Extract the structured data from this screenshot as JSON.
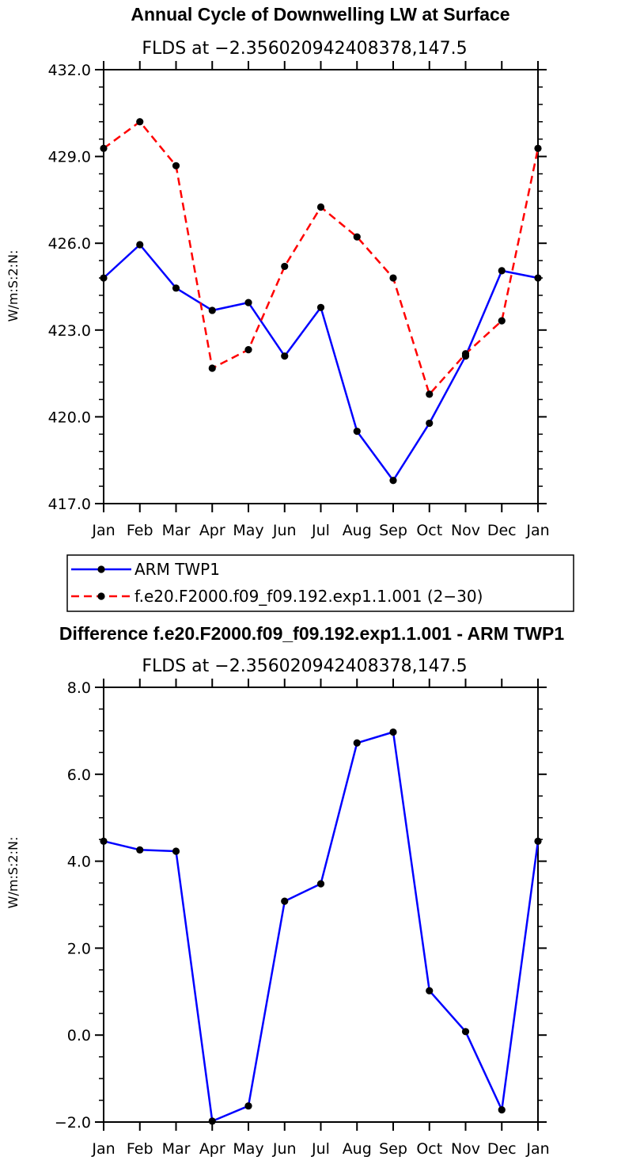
{
  "chart_data": [
    {
      "type": "line",
      "title": "Annual Cycle of Downwelling LW at Surface",
      "subtitle": "FLDS at −2.356020942408378,147.5",
      "xlabel": "",
      "ylabel": "W/m:S:2:N:",
      "categories": [
        "Jan",
        "Feb",
        "Mar",
        "Apr",
        "May",
        "Jun",
        "Jul",
        "Aug",
        "Sep",
        "Oct",
        "Nov",
        "Dec",
        "Jan"
      ],
      "ylim": [
        417.0,
        432.0
      ],
      "yticks": [
        "417.0",
        "420.0",
        "423.0",
        "426.0",
        "429.0",
        "432.0"
      ],
      "series": [
        {
          "name": "ARM TWP1",
          "color": "#0000ff",
          "dash": "solid",
          "values": [
            424.8,
            425.95,
            424.45,
            423.68,
            423.95,
            422.1,
            423.78,
            419.5,
            417.8,
            419.78,
            422.1,
            425.05,
            424.8
          ]
        },
        {
          "name": "f.e20.F2000.f09_f09.192.exp1.1.001 (2−30)",
          "color": "#ff0000",
          "dash": "dashed",
          "values": [
            429.28,
            430.2,
            428.68,
            421.68,
            422.32,
            425.2,
            427.25,
            426.22,
            424.8,
            420.78,
            422.18,
            423.32,
            429.28
          ]
        }
      ],
      "legend": [
        "ARM TWP1",
        "f.e20.F2000.f09_f09.192.exp1.1.001 (2−30)"
      ]
    },
    {
      "type": "line",
      "title": "Difference f.e20.F2000.f09_f09.192.exp1.1.001 - ARM TWP1",
      "subtitle": "FLDS at −2.356020942408378,147.5",
      "xlabel": "",
      "ylabel": "W/m:S:2:N:",
      "categories": [
        "Jan",
        "Feb",
        "Mar",
        "Apr",
        "May",
        "Jun",
        "Jul",
        "Aug",
        "Sep",
        "Oct",
        "Nov",
        "Dec",
        "Jan"
      ],
      "ylim": [
        -2.0,
        8.0
      ],
      "yticks": [
        "−2.0",
        "0.0",
        "2.0",
        "4.0",
        "6.0",
        "8.0"
      ],
      "series": [
        {
          "name": "difference",
          "color": "#0000ff",
          "dash": "solid",
          "values": [
            4.46,
            4.26,
            4.23,
            -1.98,
            -1.63,
            3.08,
            3.48,
            6.72,
            6.97,
            1.02,
            0.08,
            -1.72,
            4.46
          ]
        }
      ]
    }
  ]
}
